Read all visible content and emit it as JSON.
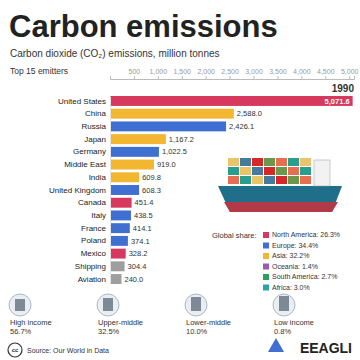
{
  "chart_data": {
    "type": "bar",
    "orientation": "horizontal",
    "title": "Carbon emissions",
    "subtitle": "Carbon dioxide (CO₂) emissions, million tonnes",
    "ylabel": "Top 15 emitters",
    "annotation": "1990",
    "categories": [
      "United States",
      "China",
      "Russia",
      "Japan",
      "Germany",
      "Middle East",
      "India",
      "United Kingdom",
      "Canada",
      "Italy",
      "France",
      "Poland",
      "Mexico",
      "Shipping",
      "Aviation"
    ],
    "values": [
      5071.6,
      2588.0,
      2426.1,
      1167.2,
      1022.5,
      919.0,
      609.8,
      608.3,
      451.4,
      438.5,
      414.1,
      374.1,
      328.2,
      304.4,
      240.0
    ],
    "value_labels": [
      "5,071.6",
      "2,588.0",
      "2,426.1",
      "1,167.2",
      "1,022.5",
      "919.0",
      "609.8",
      "608.3",
      "451.4",
      "438.5",
      "414.1",
      "374.1",
      "328.2",
      "304.4",
      "240.0"
    ],
    "colors": [
      "#d7385e",
      "#f2b630",
      "#3f6fd1",
      "#f2b630",
      "#3f6fd1",
      "#f2b630",
      "#f2b630",
      "#3f6fd1",
      "#d7385e",
      "#3f6fd1",
      "#3f6fd1",
      "#3f6fd1",
      "#d7385e",
      "#9e9e9e",
      "#9e9e9e"
    ],
    "data_labels": true,
    "xlim": [
      0,
      5100
    ],
    "xticks": [
      500,
      {
        "value": 1000,
        "label": "1,000"
      },
      {
        "value": 1500,
        "label": "1,500"
      },
      {
        "value": 2000,
        "label": "2,000"
      },
      {
        "value": 2500,
        "label": "2,500"
      },
      {
        "value": 3000,
        "label": "3,000"
      },
      {
        "value": 3500,
        "label": "3,500"
      },
      {
        "value": 4000,
        "label": "4,000"
      },
      {
        "value": 4500,
        "label": "4,500"
      },
      {
        "value": 5000,
        "label": "5,000"
      }
    ],
    "legend_title": "Global share:",
    "regions": [
      {
        "name": "North America",
        "share": 26.3,
        "label": "North America: 26.3%",
        "color": "#d7385e"
      },
      {
        "name": "Europe",
        "share": 34.4,
        "label": "Europe: 34.4%",
        "color": "#3f6fd1"
      },
      {
        "name": "Asia",
        "share": 32.2,
        "label": "Asia: 32.2%",
        "color": "#f2b630"
      },
      {
        "name": "Oceania",
        "share": 1.4,
        "label": "Oceania: 1.4%",
        "color": "#9b59b6"
      },
      {
        "name": "South America",
        "share": 2.7,
        "label": "South America: 2.7%",
        "color": "#2e9e5b"
      },
      {
        "name": "Africa",
        "share": 3.0,
        "label": "Africa: 3.0%",
        "color": "#2aa5a5"
      }
    ]
  },
  "income_groups": [
    {
      "name": "High income",
      "share": 56.7,
      "share_label": "56.7%"
    },
    {
      "name": "Upper-middle",
      "share": 32.5,
      "share_label": "32.5%"
    },
    {
      "name": "Lower-middle",
      "share": 10.0,
      "share_label": "10.0%"
    },
    {
      "name": "Low income",
      "share": 0.8,
      "share_label": "0.8%"
    }
  ],
  "license": "cc",
  "source": "Source: Our World in Data",
  "brand": "EEAGLI"
}
